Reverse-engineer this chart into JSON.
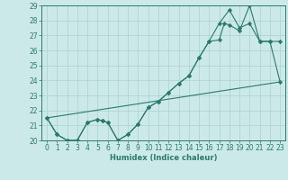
{
  "xlabel": "Humidex (Indice chaleur)",
  "ylabel": "",
  "xlim": [
    -0.5,
    23.5
  ],
  "ylim": [
    20,
    29
  ],
  "yticks": [
    20,
    21,
    22,
    23,
    24,
    25,
    26,
    27,
    28,
    29
  ],
  "xticks": [
    0,
    1,
    2,
    3,
    4,
    5,
    6,
    7,
    8,
    9,
    10,
    11,
    12,
    13,
    14,
    15,
    16,
    17,
    18,
    19,
    20,
    21,
    22,
    23
  ],
  "bg_color": "#cce9e9",
  "grid_color": "#aad0d0",
  "line_color": "#2a7a6a",
  "series1": {
    "x": [
      0,
      1,
      2,
      3,
      4,
      5,
      5.5,
      6,
      7,
      8,
      9,
      10,
      11,
      12,
      13,
      14,
      15,
      16,
      17,
      17.5,
      18,
      19,
      20,
      21,
      22,
      23
    ],
    "y": [
      21.5,
      20.4,
      20.0,
      20.0,
      21.2,
      21.4,
      21.3,
      21.2,
      20.0,
      20.4,
      21.1,
      22.2,
      22.6,
      23.2,
      23.8,
      24.3,
      25.5,
      26.6,
      26.7,
      27.8,
      27.7,
      27.3,
      29.0,
      26.6,
      26.6,
      26.6
    ]
  },
  "series2": {
    "x": [
      0,
      1,
      2,
      3,
      4,
      5,
      5.5,
      6,
      7,
      8,
      9,
      10,
      11,
      12,
      13,
      14,
      15,
      16,
      17,
      18,
      19,
      20,
      21,
      22,
      23
    ],
    "y": [
      21.5,
      20.4,
      20.0,
      20.0,
      21.2,
      21.4,
      21.3,
      21.2,
      20.0,
      20.4,
      21.1,
      22.2,
      22.6,
      23.2,
      23.8,
      24.3,
      25.5,
      26.6,
      27.8,
      28.7,
      27.5,
      27.8,
      26.6,
      26.6,
      23.9
    ]
  },
  "series3": {
    "x": [
      0,
      23
    ],
    "y": [
      21.5,
      23.9
    ]
  }
}
